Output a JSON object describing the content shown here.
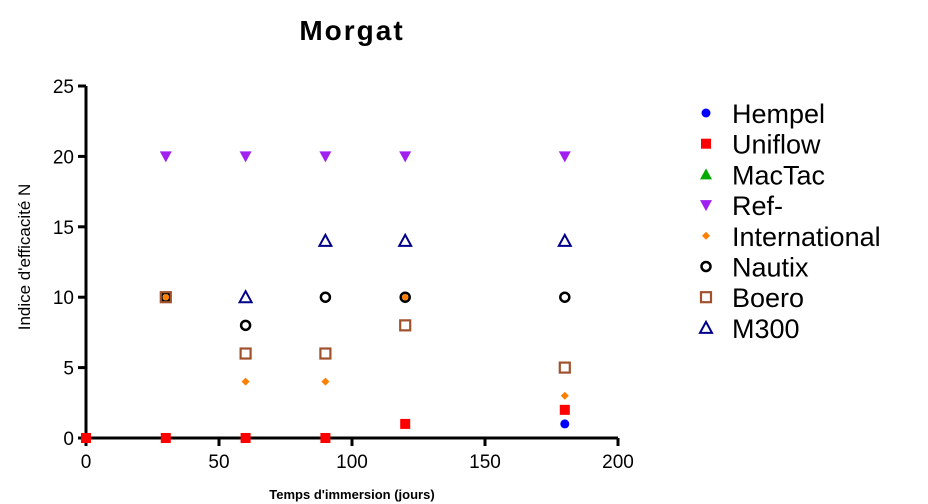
{
  "chart_data": {
    "type": "scatter",
    "title": "Morgat",
    "xlabel": "Temps d'immersion (jours)",
    "ylabel": "Indice d'efficacité N",
    "xlim": [
      0,
      200
    ],
    "ylim": [
      0,
      25
    ],
    "xticks": [
      0,
      50,
      100,
      150,
      200
    ],
    "yticks": [
      0,
      5,
      10,
      15,
      20,
      25
    ],
    "grid": false,
    "legend": "right",
    "series": [
      {
        "name": "Hempel",
        "marker": "circle-filled",
        "color": "#0000ff",
        "points": [
          [
            0,
            0
          ],
          [
            30,
            0
          ],
          [
            60,
            0
          ],
          [
            90,
            0
          ],
          [
            120,
            1
          ],
          [
            180,
            1
          ]
        ]
      },
      {
        "name": "Uniflow",
        "marker": "square-filled",
        "color": "#ff0000",
        "points": [
          [
            0,
            0
          ],
          [
            30,
            0
          ],
          [
            60,
            0
          ],
          [
            90,
            0
          ],
          [
            120,
            1
          ],
          [
            180,
            2
          ]
        ]
      },
      {
        "name": "MacTac",
        "marker": "triangle-up-filled",
        "color": "#00aa00",
        "points": []
      },
      {
        "name": "Ref-",
        "marker": "triangle-down-filled",
        "color": "#a020f0",
        "points": [
          [
            30,
            20
          ],
          [
            60,
            20
          ],
          [
            90,
            20
          ],
          [
            120,
            20
          ],
          [
            180,
            20
          ]
        ]
      },
      {
        "name": "International",
        "marker": "diamond-filled",
        "color": "#ff7f00",
        "points": [
          [
            30,
            10
          ],
          [
            60,
            4
          ],
          [
            90,
            4
          ],
          [
            120,
            10
          ],
          [
            180,
            3
          ]
        ]
      },
      {
        "name": "Nautix",
        "marker": "circle-open",
        "color": "#000000",
        "points": [
          [
            30,
            10
          ],
          [
            60,
            8
          ],
          [
            90,
            10
          ],
          [
            120,
            10
          ],
          [
            180,
            10
          ]
        ]
      },
      {
        "name": "Boero",
        "marker": "square-open",
        "color": "#a0522d",
        "points": [
          [
            30,
            10
          ],
          [
            60,
            6
          ],
          [
            90,
            6
          ],
          [
            120,
            8
          ],
          [
            180,
            5
          ]
        ]
      },
      {
        "name": "M300",
        "marker": "triangle-up-open",
        "color": "#00008b",
        "points": [
          [
            60,
            10
          ],
          [
            90,
            14
          ],
          [
            120,
            14
          ],
          [
            180,
            14
          ]
        ]
      }
    ]
  }
}
